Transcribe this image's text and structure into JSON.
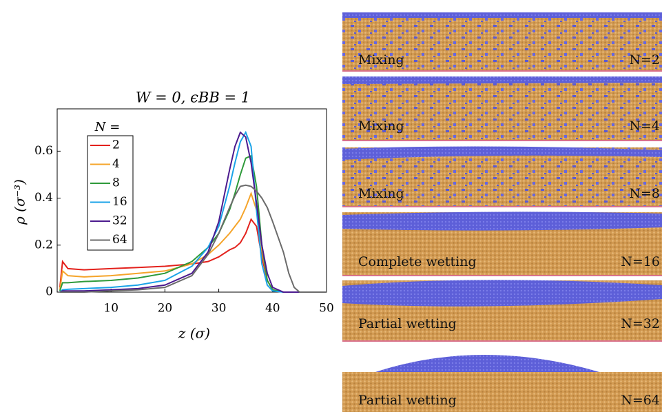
{
  "chart_data": {
    "type": "line",
    "title": "W = 0, ϵBB = 1",
    "x_label": "z (σ)",
    "y_label": "ρ (σ⁻³)",
    "legend_title": "N =",
    "x": [
      0.5,
      1,
      2,
      5,
      10,
      15,
      20,
      25,
      28,
      30,
      32,
      33,
      34,
      35,
      36,
      37,
      38,
      39,
      40,
      42,
      43,
      44,
      45,
      50
    ],
    "series": [
      {
        "name": "2",
        "color": "#e3211c",
        "values": [
          0.02,
          0.13,
          0.1,
          0.095,
          0.1,
          0.105,
          0.11,
          0.12,
          0.13,
          0.15,
          0.18,
          0.19,
          0.21,
          0.25,
          0.31,
          0.28,
          0.15,
          0.05,
          0.01,
          0,
          0,
          0,
          0,
          0
        ]
      },
      {
        "name": "4",
        "color": "#f5a42a",
        "values": [
          0.01,
          0.09,
          0.07,
          0.065,
          0.07,
          0.08,
          0.09,
          0.12,
          0.16,
          0.2,
          0.25,
          0.28,
          0.31,
          0.36,
          0.42,
          0.35,
          0.18,
          0.05,
          0.01,
          0,
          0,
          0,
          0,
          0
        ]
      },
      {
        "name": "8",
        "color": "#2e9a3a",
        "values": [
          0.005,
          0.04,
          0.04,
          0.045,
          0.05,
          0.06,
          0.08,
          0.13,
          0.19,
          0.25,
          0.35,
          0.42,
          0.5,
          0.57,
          0.58,
          0.45,
          0.2,
          0.05,
          0.01,
          0,
          0,
          0,
          0,
          0
        ]
      },
      {
        "name": "16",
        "color": "#1aa3e8",
        "values": [
          0,
          0.01,
          0.012,
          0.015,
          0.02,
          0.03,
          0.05,
          0.11,
          0.19,
          0.28,
          0.45,
          0.55,
          0.64,
          0.68,
          0.62,
          0.35,
          0.12,
          0.03,
          0.005,
          0,
          0,
          0,
          0,
          0
        ]
      },
      {
        "name": "32",
        "color": "#4b1a8e",
        "values": [
          0,
          0.005,
          0.005,
          0.005,
          0.01,
          0.015,
          0.03,
          0.08,
          0.17,
          0.3,
          0.52,
          0.62,
          0.68,
          0.66,
          0.55,
          0.38,
          0.2,
          0.08,
          0.02,
          0,
          0,
          0,
          0,
          0
        ]
      },
      {
        "name": "64",
        "color": "#6b6b6b",
        "values": [
          0,
          0,
          0,
          0,
          0.005,
          0.01,
          0.02,
          0.07,
          0.16,
          0.25,
          0.36,
          0.41,
          0.45,
          0.455,
          0.45,
          0.43,
          0.4,
          0.36,
          0.3,
          0.17,
          0.08,
          0.02,
          0,
          0
        ]
      }
    ],
    "xlim": [
      0,
      50
    ],
    "ylim": [
      0,
      0.78
    ],
    "xticks": [
      10,
      20,
      30,
      40,
      50
    ],
    "yticks": [
      0,
      0.2,
      0.4,
      0.6
    ]
  },
  "panels": [
    {
      "label": "Mixing",
      "n": "N=2"
    },
    {
      "label": "Mixing",
      "n": "N=4"
    },
    {
      "label": "Mixing",
      "n": "N=8"
    },
    {
      "label": "Complete wetting",
      "n": "N=16"
    },
    {
      "label": "Partial wetting",
      "n": "N=32"
    },
    {
      "label": "Partial wetting",
      "n": "N=64"
    }
  ]
}
